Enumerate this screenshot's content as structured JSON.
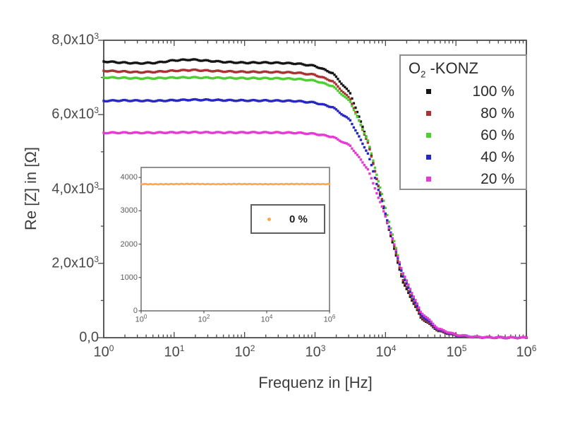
{
  "chart_data": {
    "type": "scatter",
    "title": "",
    "xlabel": "Frequenz in [Hz]",
    "ylabel": "Re [Z] in [Ω]",
    "x_scale": "log",
    "xlim_log": [
      0,
      6
    ],
    "ylim": [
      0,
      8000
    ],
    "grid": "off",
    "legend_position": "upper right",
    "x_ticks": [
      {
        "log": 0,
        "base": "10",
        "exp": "0"
      },
      {
        "log": 1,
        "base": "10",
        "exp": "1"
      },
      {
        "log": 2,
        "base": "10",
        "exp": "2"
      },
      {
        "log": 3,
        "base": "10",
        "exp": "3"
      },
      {
        "log": 4,
        "base": "10",
        "exp": "4"
      },
      {
        "log": 5,
        "base": "10",
        "exp": "5"
      },
      {
        "log": 6,
        "base": "10",
        "exp": "6"
      }
    ],
    "y_ticks": [
      {
        "value": 8000,
        "mantissa": "8,0x10",
        "exp": "3"
      },
      {
        "value": 6000,
        "mantissa": "6,0x10",
        "exp": "3"
      },
      {
        "value": 4000,
        "mantissa": "4,0x10",
        "exp": "3"
      },
      {
        "value": 2000,
        "mantissa": "2,0x10",
        "exp": "3"
      },
      {
        "value": 0,
        "mantissa": "0,0",
        "exp": ""
      }
    ],
    "legend_title": {
      "base": "O",
      "sub": "2",
      "rest": " -KONZ"
    },
    "series": [
      {
        "name": "100 %",
        "color": "#151515",
        "points": [
          [
            0,
            7430
          ],
          [
            0.25,
            7400
          ],
          [
            0.5,
            7380
          ],
          [
            0.75,
            7395
          ],
          [
            1,
            7460
          ],
          [
            1.25,
            7480
          ],
          [
            1.5,
            7445
          ],
          [
            1.75,
            7410
          ],
          [
            2,
            7395
          ],
          [
            2.25,
            7400
          ],
          [
            2.5,
            7391
          ],
          [
            2.75,
            7371
          ],
          [
            3,
            7308
          ],
          [
            3.25,
            7117
          ],
          [
            3.5,
            6573
          ],
          [
            3.75,
            5293
          ],
          [
            4,
            3275
          ],
          [
            4.25,
            1486
          ],
          [
            4.5,
            545
          ],
          [
            4.75,
            181
          ],
          [
            5,
            58
          ],
          [
            5.25,
            19
          ],
          [
            5.5,
            6
          ],
          [
            5.75,
            2
          ],
          [
            6,
            1
          ]
        ]
      },
      {
        "name": "80 %",
        "color": "#ab3232",
        "points": [
          [
            0,
            7180
          ],
          [
            0.25,
            7160
          ],
          [
            0.5,
            7140
          ],
          [
            0.75,
            7150
          ],
          [
            1,
            7180
          ],
          [
            1.25,
            7200
          ],
          [
            1.5,
            7180
          ],
          [
            1.75,
            7160
          ],
          [
            2,
            7150
          ],
          [
            2.25,
            7147
          ],
          [
            2.5,
            7142
          ],
          [
            2.75,
            7124
          ],
          [
            3,
            7069
          ],
          [
            3.25,
            6900
          ],
          [
            3.5,
            6414
          ],
          [
            3.75,
            5246
          ],
          [
            4,
            3329
          ],
          [
            4.25,
            1544
          ],
          [
            4.5,
            573
          ],
          [
            4.75,
            192
          ],
          [
            5,
            62
          ],
          [
            5.25,
            20
          ],
          [
            5.5,
            7
          ],
          [
            5.75,
            2
          ],
          [
            6,
            1
          ]
        ]
      },
      {
        "name": "60 %",
        "color": "#4fce33",
        "points": [
          [
            0,
            7000
          ],
          [
            0.25,
            6990
          ],
          [
            0.5,
            6975
          ],
          [
            0.75,
            6980
          ],
          [
            1,
            6995
          ],
          [
            1.25,
            7000
          ],
          [
            1.5,
            6990
          ],
          [
            1.75,
            6985
          ],
          [
            2,
            6980
          ],
          [
            2.25,
            6978
          ],
          [
            2.5,
            6973
          ],
          [
            2.75,
            6958
          ],
          [
            3,
            6911
          ],
          [
            3.25,
            6766
          ],
          [
            3.5,
            6345
          ],
          [
            3.75,
            5303
          ],
          [
            4,
            3490
          ],
          [
            4.25,
            1677
          ],
          [
            4.5,
            635
          ],
          [
            4.75,
            214
          ],
          [
            5,
            69
          ],
          [
            5.25,
            22
          ],
          [
            5.5,
            7
          ],
          [
            5.75,
            2
          ],
          [
            6,
            1
          ]
        ]
      },
      {
        "name": "40 %",
        "color": "#2727c4",
        "points": [
          [
            0,
            6370
          ],
          [
            0.25,
            6380
          ],
          [
            0.5,
            6375
          ],
          [
            0.75,
            6370
          ],
          [
            1,
            6385
          ],
          [
            1.25,
            6400
          ],
          [
            1.5,
            6395
          ],
          [
            1.75,
            6385
          ],
          [
            2,
            6380
          ],
          [
            2.25,
            6378
          ],
          [
            2.5,
            6374
          ],
          [
            2.75,
            6362
          ],
          [
            3,
            6322
          ],
          [
            3.25,
            6200
          ],
          [
            3.5,
            5847
          ],
          [
            3.75,
            4953
          ],
          [
            4,
            3337
          ],
          [
            4.25,
            1644
          ],
          [
            4.5,
            630
          ],
          [
            4.75,
            214
          ],
          [
            5,
            69
          ],
          [
            5.25,
            22
          ],
          [
            5.5,
            7
          ],
          [
            5.75,
            2
          ],
          [
            6,
            1
          ]
        ]
      },
      {
        "name": "20 %",
        "color": "#e43bd2",
        "points": [
          [
            0,
            5510
          ],
          [
            0.25,
            5515
          ],
          [
            0.5,
            5510
          ],
          [
            0.75,
            5515
          ],
          [
            1,
            5520
          ],
          [
            1.25,
            5525
          ],
          [
            1.5,
            5520
          ],
          [
            1.75,
            5518
          ],
          [
            2,
            5520
          ],
          [
            2.25,
            5519
          ],
          [
            2.5,
            5516
          ],
          [
            2.75,
            5508
          ],
          [
            3,
            5482
          ],
          [
            3.25,
            5402
          ],
          [
            3.5,
            5163
          ],
          [
            3.75,
            4529
          ],
          [
            4,
            3263
          ],
          [
            4.25,
            1731
          ],
          [
            4.5,
            697
          ],
          [
            4.75,
            241
          ],
          [
            5,
            79
          ],
          [
            5.25,
            25
          ],
          [
            5.5,
            8
          ],
          [
            5.75,
            3
          ],
          [
            6,
            1
          ]
        ]
      }
    ],
    "inset": {
      "type": "scatter",
      "x_scale": "log",
      "xlim_log": [
        0,
        6
      ],
      "ylim": [
        0,
        4300
      ],
      "x_ticks": [
        {
          "log": 0,
          "base": "10",
          "exp": "0"
        },
        {
          "log": 2,
          "base": "10",
          "exp": "2"
        },
        {
          "log": 4,
          "base": "10",
          "exp": "4"
        },
        {
          "log": 6,
          "base": "10",
          "exp": "6"
        }
      ],
      "y_ticks": [
        {
          "value": 4000,
          "label": "4000"
        },
        {
          "value": 3000,
          "label": "3000"
        },
        {
          "value": 2000,
          "label": "2000"
        },
        {
          "value": 1000,
          "label": "1000"
        },
        {
          "value": 0,
          "label": "0"
        }
      ],
      "series": [
        {
          "name": "0 %",
          "color": "#ffa64d",
          "points": [
            [
              0,
              3800
            ],
            [
              0.5,
              3795
            ],
            [
              1,
              3800
            ],
            [
              1.5,
              3805
            ],
            [
              2,
              3800
            ],
            [
              2.5,
              3798
            ],
            [
              3,
              3802
            ],
            [
              3.5,
              3800
            ],
            [
              4,
              3797
            ],
            [
              4.5,
              3800
            ],
            [
              5,
              3803
            ],
            [
              5.5,
              3800
            ],
            [
              6,
              3798
            ]
          ]
        }
      ]
    }
  }
}
